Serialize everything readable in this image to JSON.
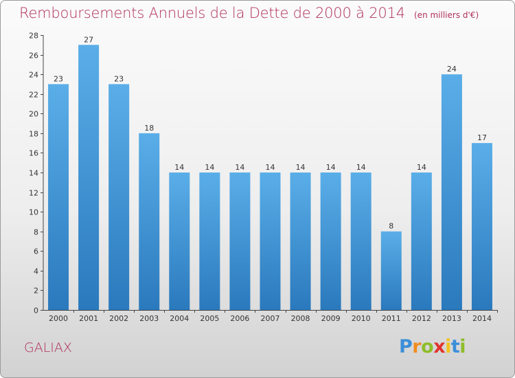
{
  "header": {
    "title": "Remboursements Annuels de la Dette de 2000 à 2014",
    "subtitle": "(en milliers d'€)"
  },
  "footer": {
    "commune": "GALIAX",
    "logo_text": "Proxiti"
  },
  "colors": {
    "title": "#b0305c",
    "bar_light": "#5aaee8",
    "bar_dark": "#2a79bd"
  },
  "chart_data": {
    "type": "bar",
    "categories": [
      "2000",
      "2001",
      "2002",
      "2003",
      "2004",
      "2005",
      "2006",
      "2007",
      "2008",
      "2009",
      "2010",
      "2011",
      "2012",
      "2013",
      "2014"
    ],
    "values": [
      23,
      27,
      23,
      18,
      14,
      14,
      14,
      14,
      14,
      14,
      14,
      8,
      14,
      24,
      17
    ],
    "title": "Remboursements Annuels de la Dette de 2000 à 2014",
    "subtitle": "(en milliers d'€)",
    "ylim": [
      0,
      28
    ],
    "yticks": [
      0,
      2,
      4,
      6,
      8,
      10,
      12,
      14,
      16,
      18,
      20,
      22,
      24,
      26,
      28
    ],
    "grid": false,
    "legend": "none"
  }
}
